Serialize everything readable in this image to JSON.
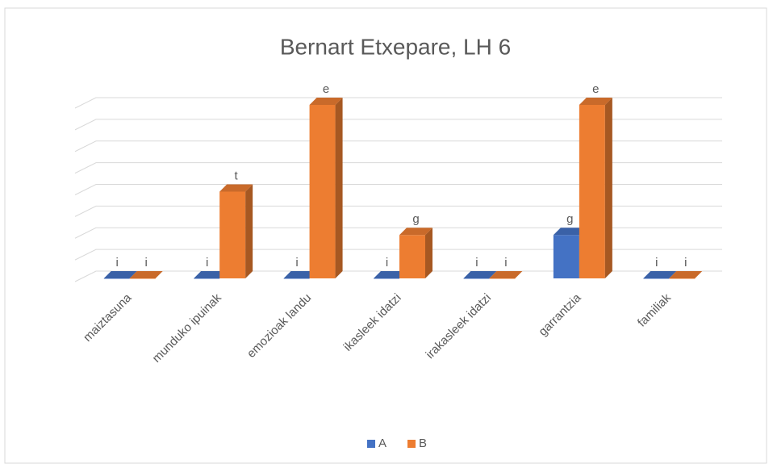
{
  "chart_data": {
    "type": "bar3d",
    "title": "Bernart Etxepare, LH 6",
    "categories": [
      "maiztasuna",
      "munduko ipuinak",
      "emozioak landu",
      "ikasleek idatzi",
      "irakasleek idatzi",
      "garrantzia",
      "familiak"
    ],
    "series": [
      {
        "name": "A",
        "color": "#4472c4",
        "values": [
          0,
          0,
          0,
          0,
          0,
          2,
          0
        ],
        "value_labels": [
          "i",
          "i",
          "i",
          "i",
          "i",
          "g",
          "i"
        ]
      },
      {
        "name": "B",
        "color": "#ed7d31",
        "values": [
          0,
          4,
          8,
          2,
          0,
          8,
          0
        ],
        "value_labels": [
          "i",
          "t",
          "e",
          "g",
          "i",
          "e",
          "i"
        ]
      }
    ],
    "ylim": [
      0,
      8
    ],
    "yticks": [
      0,
      1,
      2,
      3,
      4,
      5,
      6,
      7,
      8
    ],
    "grid": true,
    "legend": "bottom"
  }
}
